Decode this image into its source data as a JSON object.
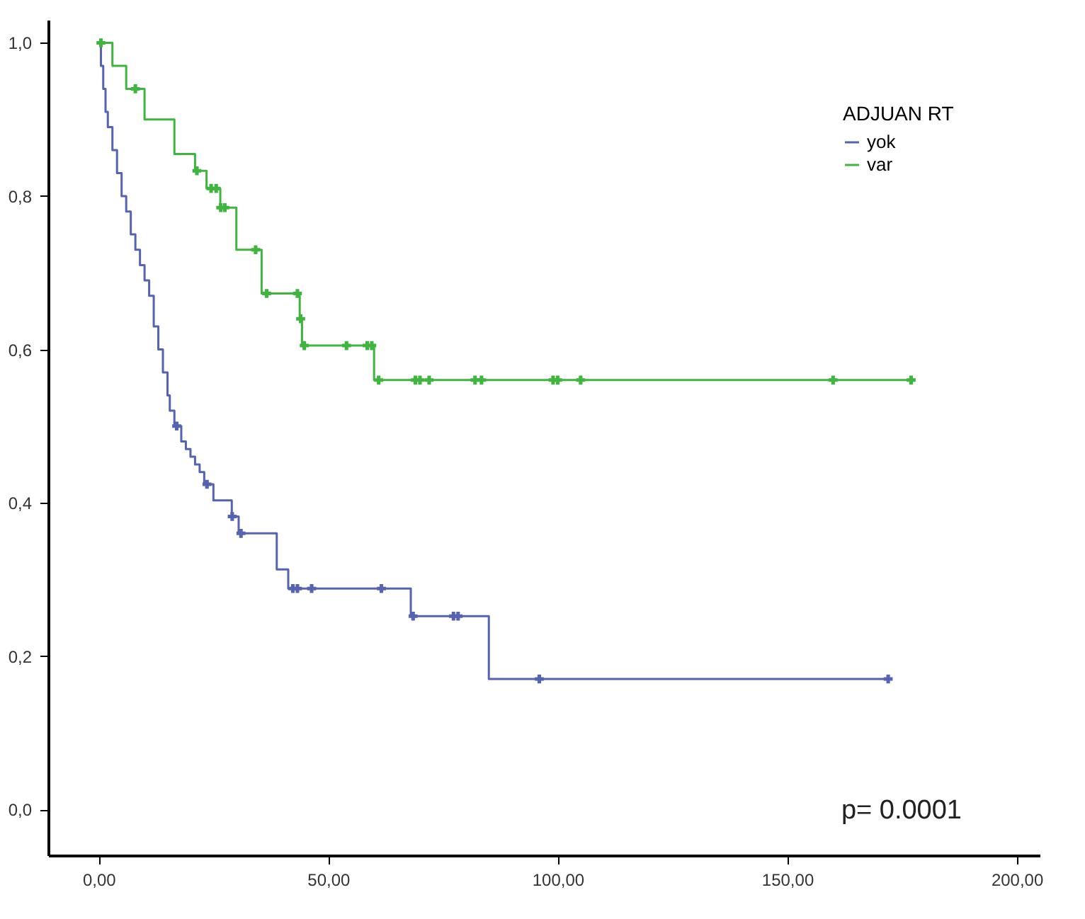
{
  "chart_data": {
    "type": "step",
    "legend_title": "ADJUAN RT",
    "legend": "top right",
    "grid": false,
    "xlim": [
      -11,
      205
    ],
    "ylim": [
      -0.06,
      1.03
    ],
    "xticks": [
      {
        "value": 0,
        "label": "0,00"
      },
      {
        "value": 50,
        "label": "50,00"
      },
      {
        "value": 100,
        "label": "100,00"
      },
      {
        "value": 150,
        "label": "150,00"
      },
      {
        "value": 200,
        "label": "200,00"
      }
    ],
    "yticks": [
      {
        "value": 0,
        "label": "0,0"
      },
      {
        "value": 0.2,
        "label": "0,2"
      },
      {
        "value": 0.4,
        "label": "0,4"
      },
      {
        "value": 0.6,
        "label": "0,6"
      },
      {
        "value": 0.8,
        "label": "0,8"
      },
      {
        "value": 1,
        "label": "1,0"
      }
    ],
    "annotations": [
      "p= 0.0001"
    ],
    "series": [
      {
        "name": "yok",
        "color": "#5563b0",
        "x": [
          0,
          0.5,
          1,
          1.5,
          2,
          3,
          4,
          5,
          6,
          7,
          8,
          9,
          10,
          11,
          12,
          13,
          14,
          15,
          15.5,
          16.5,
          18,
          19,
          20,
          21,
          22,
          23,
          25,
          29,
          30.5,
          38.8,
          41.3,
          68,
          85,
          172
        ],
        "values": [
          1,
          0.97,
          0.94,
          0.91,
          0.89,
          0.86,
          0.83,
          0.8,
          0.78,
          0.75,
          0.73,
          0.71,
          0.69,
          0.67,
          0.63,
          0.6,
          0.57,
          0.54,
          0.52,
          0.5,
          0.48,
          0.47,
          0.46,
          0.45,
          0.44,
          0.424,
          0.403,
          0.382,
          0.36,
          0.313,
          0.288,
          0.252,
          0.17,
          0.17
        ]
      },
      {
        "name": "var",
        "color": "#3fb53f",
        "x": [
          0,
          3,
          6,
          10,
          16.5,
          21,
          23.5,
          26.5,
          30,
          35.5,
          43.8,
          44.3,
          60,
          177
        ],
        "values": [
          1,
          0.97,
          0.94,
          0.9,
          0.855,
          0.833,
          0.81,
          0.785,
          0.73,
          0.673,
          0.64,
          0.605,
          0.56,
          0.56
        ]
      },
      {
        "color": "#5563b0",
        "type": "scatter",
        "marker": "cross",
        "x": [
          17,
          23.6,
          29.1,
          31,
          42.3,
          43.3,
          46.4,
          61.6,
          68.5,
          77.3,
          78.3,
          96,
          172
        ],
        "values": [
          0.5,
          0.424,
          0.382,
          0.36,
          0.288,
          0.288,
          0.288,
          0.288,
          0.252,
          0.252,
          0.252,
          0.17,
          0.17
        ]
      },
      {
        "color": "#3fb53f",
        "type": "scatter",
        "marker": "cross",
        "x": [
          0.5,
          8,
          21.4,
          24.5,
          25.6,
          26.6,
          27.5,
          34.2,
          36.6,
          43.3,
          44,
          44.8,
          54,
          58.5,
          59.5,
          61,
          69,
          70,
          72,
          82,
          83.4,
          99,
          100,
          105,
          160,
          177
        ],
        "values": [
          1,
          0.94,
          0.833,
          0.81,
          0.81,
          0.785,
          0.785,
          0.73,
          0.673,
          0.673,
          0.64,
          0.605,
          0.605,
          0.605,
          0.605,
          0.56,
          0.56,
          0.56,
          0.56,
          0.56,
          0.56,
          0.56,
          0.56,
          0.56,
          0.56,
          0.56
        ]
      }
    ]
  }
}
